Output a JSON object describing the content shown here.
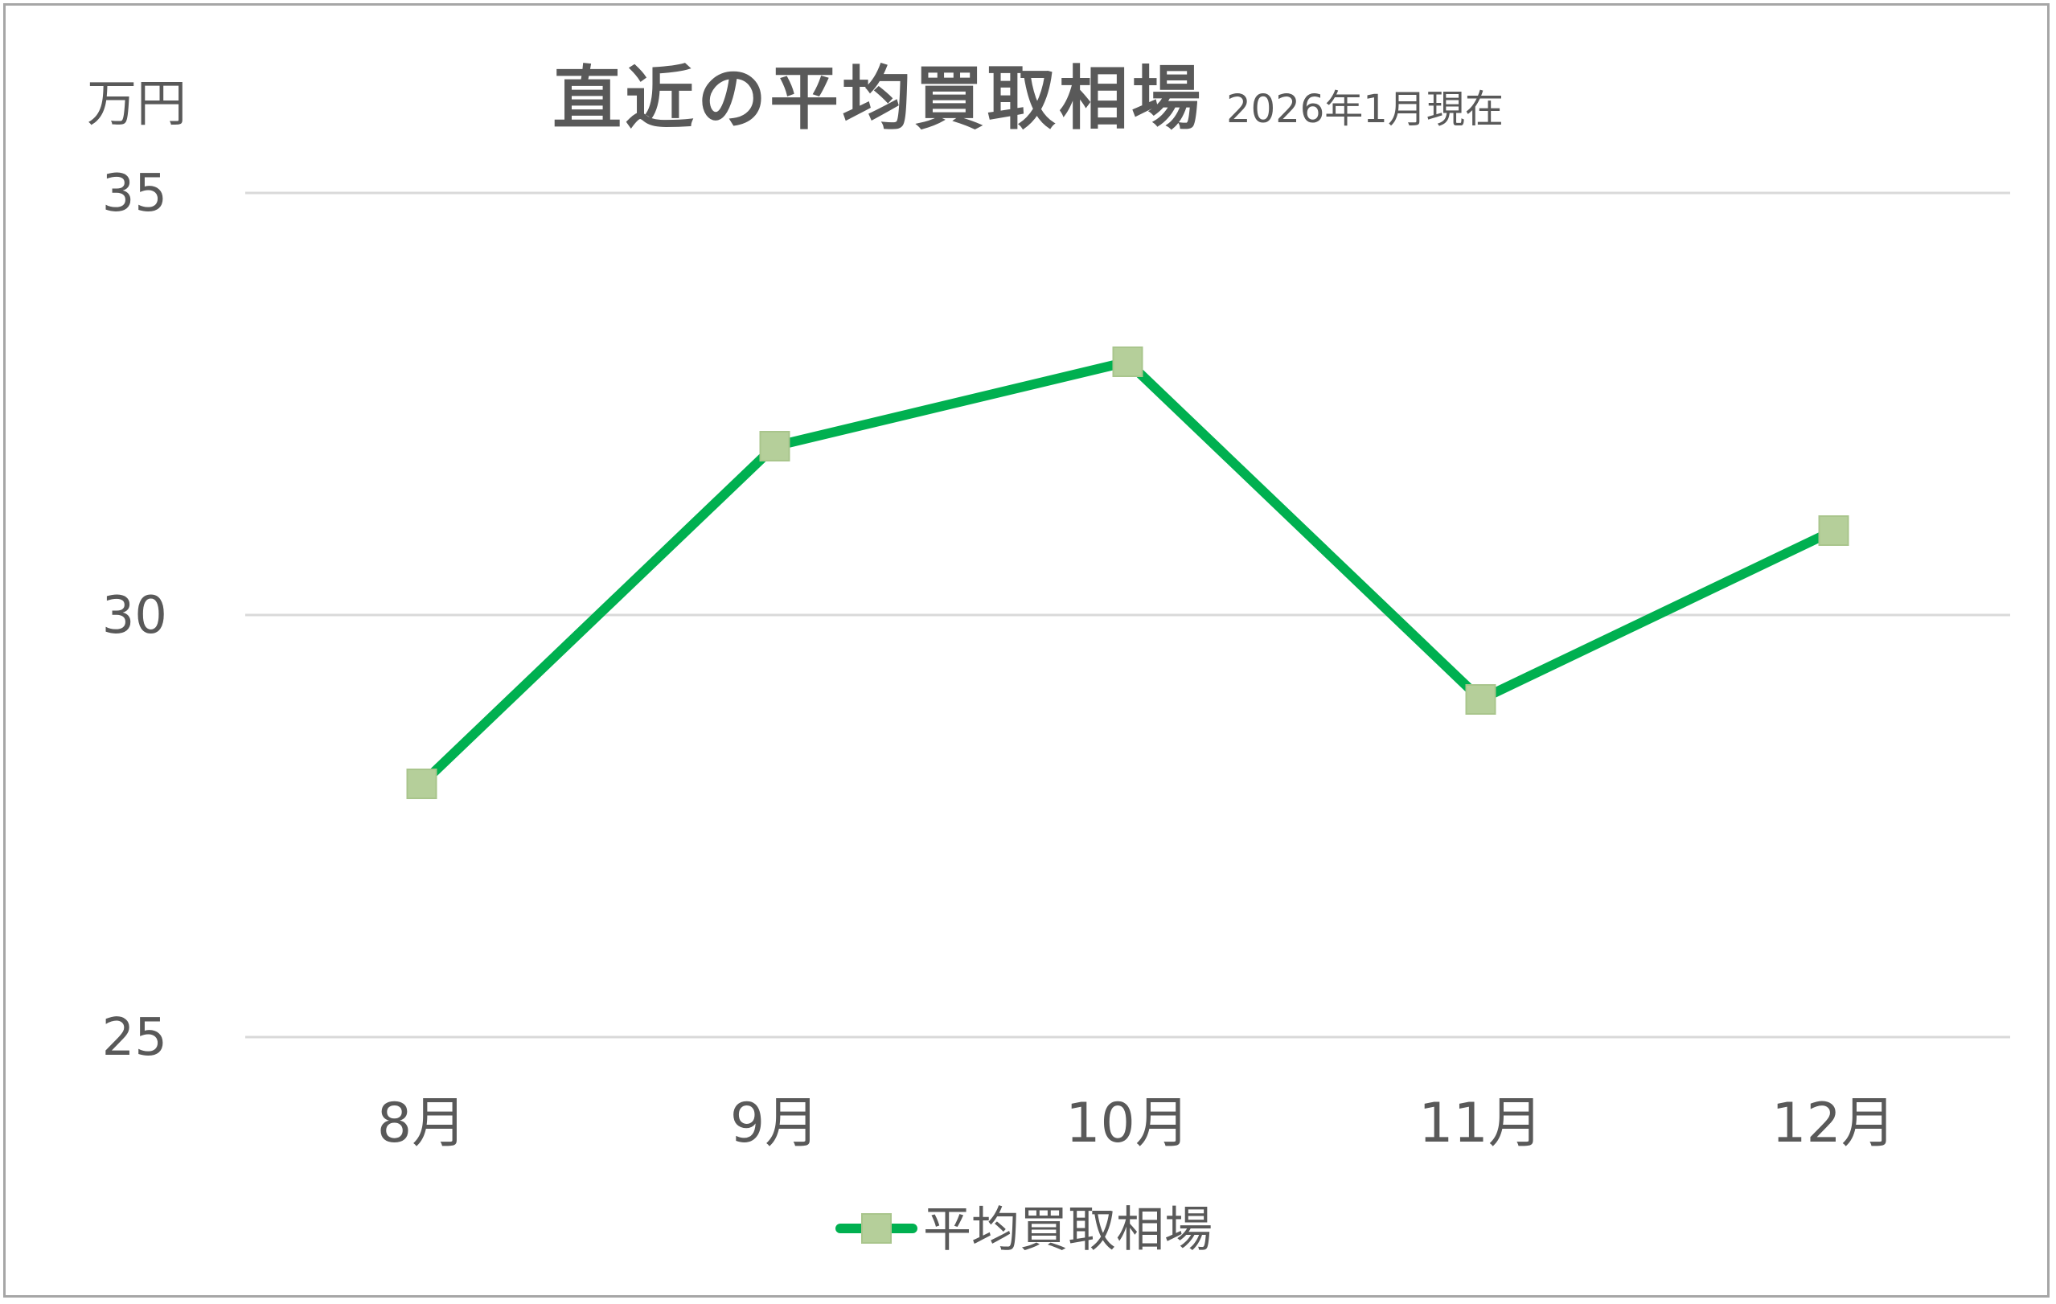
{
  "chart_data": {
    "type": "line",
    "title": "直近の平均買取相場",
    "subtitle": "2026年1月現在",
    "ylabel": "万円",
    "xlabel": "",
    "categories": [
      "8月",
      "9月",
      "10月",
      "11月",
      "12月"
    ],
    "series": [
      {
        "name": "平均買取相場",
        "values": [
          28,
          32,
          33,
          29,
          31
        ]
      }
    ],
    "ylim": [
      25,
      35
    ],
    "yticks": [
      "25",
      "30",
      "35"
    ],
    "grid": true,
    "legend": "bottom",
    "colors": {
      "line": "#00b050",
      "marker": "#b5cf9a",
      "grid": "#d9d9d9",
      "text": "#595959"
    }
  }
}
